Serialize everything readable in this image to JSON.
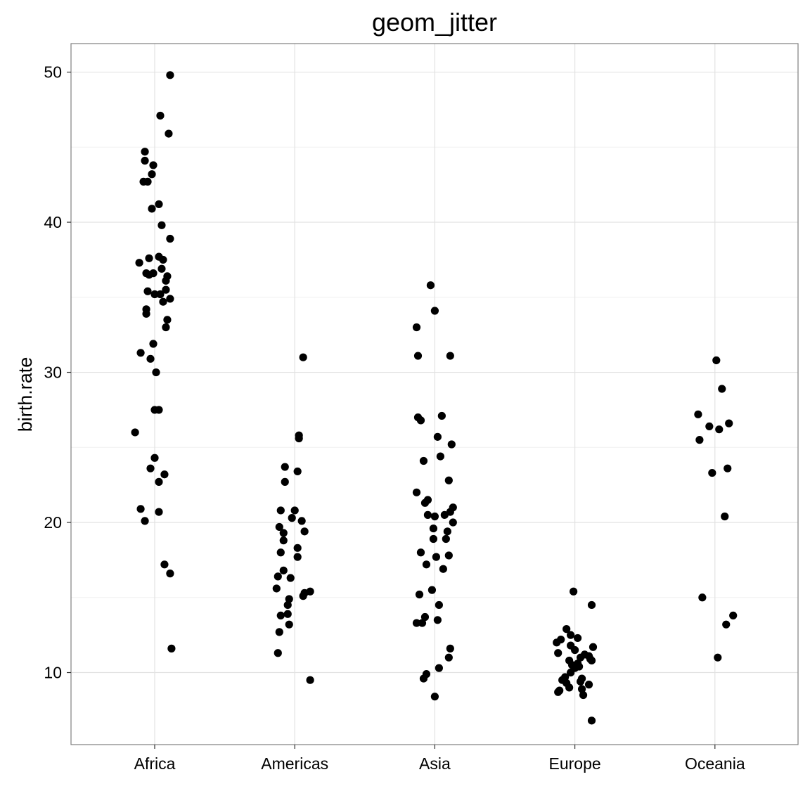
{
  "chart_data": {
    "type": "scatter",
    "title": "geom_jitter",
    "xlabel": "",
    "ylabel": "birth.rate",
    "categories": [
      "Africa",
      "Americas",
      "Asia",
      "Europe",
      "Oceania"
    ],
    "y_ticks": [
      10,
      20,
      30,
      40,
      50
    ],
    "ylim": [
      5.2,
      51.9
    ],
    "grid": true,
    "colors": {
      "point": "#000000",
      "grid_major": "#e2e2e2",
      "grid_minor": "#f0f0f0",
      "panel_border": "#7f7f7f"
    },
    "points": [
      {
        "x": "Africa",
        "jitter": 0.11,
        "y": 49.8
      },
      {
        "x": "Africa",
        "jitter": 0.04,
        "y": 47.1
      },
      {
        "x": "Africa",
        "jitter": 0.1,
        "y": 45.9
      },
      {
        "x": "Africa",
        "jitter": -0.07,
        "y": 44.7
      },
      {
        "x": "Africa",
        "jitter": -0.07,
        "y": 44.1
      },
      {
        "x": "Africa",
        "jitter": -0.01,
        "y": 43.8
      },
      {
        "x": "Africa",
        "jitter": -0.02,
        "y": 43.2
      },
      {
        "x": "Africa",
        "jitter": -0.08,
        "y": 42.7
      },
      {
        "x": "Africa",
        "jitter": -0.05,
        "y": 42.7
      },
      {
        "x": "Africa",
        "jitter": 0.03,
        "y": 41.2
      },
      {
        "x": "Africa",
        "jitter": -0.02,
        "y": 40.9
      },
      {
        "x": "Africa",
        "jitter": 0.05,
        "y": 39.8
      },
      {
        "x": "Africa",
        "jitter": 0.11,
        "y": 38.9
      },
      {
        "x": "Africa",
        "jitter": 0.03,
        "y": 37.7
      },
      {
        "x": "Africa",
        "jitter": -0.04,
        "y": 37.6
      },
      {
        "x": "Africa",
        "jitter": 0.06,
        "y": 37.5
      },
      {
        "x": "Africa",
        "jitter": -0.11,
        "y": 37.3
      },
      {
        "x": "Africa",
        "jitter": 0.05,
        "y": 36.9
      },
      {
        "x": "Africa",
        "jitter": -0.06,
        "y": 36.6
      },
      {
        "x": "Africa",
        "jitter": -0.01,
        "y": 36.6
      },
      {
        "x": "Africa",
        "jitter": -0.04,
        "y": 36.5
      },
      {
        "x": "Africa",
        "jitter": 0.09,
        "y": 36.4
      },
      {
        "x": "Africa",
        "jitter": 0.08,
        "y": 36.1
      },
      {
        "x": "Africa",
        "jitter": 0.08,
        "y": 35.5
      },
      {
        "x": "Africa",
        "jitter": -0.05,
        "y": 35.4
      },
      {
        "x": "Africa",
        "jitter": 0.0,
        "y": 35.2
      },
      {
        "x": "Africa",
        "jitter": 0.04,
        "y": 35.2
      },
      {
        "x": "Africa",
        "jitter": 0.11,
        "y": 34.9
      },
      {
        "x": "Africa",
        "jitter": 0.06,
        "y": 34.7
      },
      {
        "x": "Africa",
        "jitter": -0.06,
        "y": 34.2
      },
      {
        "x": "Africa",
        "jitter": -0.06,
        "y": 33.9
      },
      {
        "x": "Africa",
        "jitter": 0.09,
        "y": 33.5
      },
      {
        "x": "Africa",
        "jitter": 0.08,
        "y": 33.0
      },
      {
        "x": "Africa",
        "jitter": -0.01,
        "y": 31.9
      },
      {
        "x": "Africa",
        "jitter": -0.1,
        "y": 31.3
      },
      {
        "x": "Africa",
        "jitter": -0.03,
        "y": 30.9
      },
      {
        "x": "Africa",
        "jitter": 0.01,
        "y": 30.0
      },
      {
        "x": "Africa",
        "jitter": 0.0,
        "y": 27.5
      },
      {
        "x": "Africa",
        "jitter": 0.03,
        "y": 27.5
      },
      {
        "x": "Africa",
        "jitter": -0.14,
        "y": 26.0
      },
      {
        "x": "Africa",
        "jitter": 0.0,
        "y": 24.3
      },
      {
        "x": "Africa",
        "jitter": -0.03,
        "y": 23.6
      },
      {
        "x": "Africa",
        "jitter": 0.07,
        "y": 23.2
      },
      {
        "x": "Africa",
        "jitter": 0.03,
        "y": 22.7
      },
      {
        "x": "Africa",
        "jitter": -0.1,
        "y": 20.9
      },
      {
        "x": "Africa",
        "jitter": 0.03,
        "y": 20.7
      },
      {
        "x": "Africa",
        "jitter": -0.07,
        "y": 20.1
      },
      {
        "x": "Africa",
        "jitter": 0.07,
        "y": 17.2
      },
      {
        "x": "Africa",
        "jitter": 0.11,
        "y": 16.6
      },
      {
        "x": "Africa",
        "jitter": 0.12,
        "y": 11.6
      },
      {
        "x": "Americas",
        "jitter": 0.06,
        "y": 31.0
      },
      {
        "x": "Americas",
        "jitter": 0.03,
        "y": 25.8
      },
      {
        "x": "Americas",
        "jitter": 0.03,
        "y": 25.6
      },
      {
        "x": "Americas",
        "jitter": -0.07,
        "y": 23.7
      },
      {
        "x": "Americas",
        "jitter": 0.02,
        "y": 23.4
      },
      {
        "x": "Americas",
        "jitter": -0.07,
        "y": 22.7
      },
      {
        "x": "Americas",
        "jitter": -0.1,
        "y": 20.8
      },
      {
        "x": "Americas",
        "jitter": 0.0,
        "y": 20.8
      },
      {
        "x": "Americas",
        "jitter": -0.02,
        "y": 20.3
      },
      {
        "x": "Americas",
        "jitter": 0.05,
        "y": 20.1
      },
      {
        "x": "Americas",
        "jitter": -0.11,
        "y": 19.7
      },
      {
        "x": "Americas",
        "jitter": 0.07,
        "y": 19.4
      },
      {
        "x": "Americas",
        "jitter": -0.08,
        "y": 19.3
      },
      {
        "x": "Americas",
        "jitter": -0.08,
        "y": 18.8
      },
      {
        "x": "Americas",
        "jitter": 0.02,
        "y": 18.3
      },
      {
        "x": "Americas",
        "jitter": -0.1,
        "y": 18.0
      },
      {
        "x": "Americas",
        "jitter": 0.02,
        "y": 17.7
      },
      {
        "x": "Americas",
        "jitter": -0.08,
        "y": 16.8
      },
      {
        "x": "Americas",
        "jitter": -0.12,
        "y": 16.4
      },
      {
        "x": "Americas",
        "jitter": -0.03,
        "y": 16.3
      },
      {
        "x": "Americas",
        "jitter": -0.13,
        "y": 15.6
      },
      {
        "x": "Americas",
        "jitter": 0.11,
        "y": 15.4
      },
      {
        "x": "Americas",
        "jitter": 0.07,
        "y": 15.3
      },
      {
        "x": "Americas",
        "jitter": 0.06,
        "y": 15.1
      },
      {
        "x": "Americas",
        "jitter": -0.04,
        "y": 14.9
      },
      {
        "x": "Americas",
        "jitter": -0.05,
        "y": 14.5
      },
      {
        "x": "Americas",
        "jitter": -0.05,
        "y": 13.9
      },
      {
        "x": "Americas",
        "jitter": -0.1,
        "y": 13.8
      },
      {
        "x": "Americas",
        "jitter": -0.04,
        "y": 13.2
      },
      {
        "x": "Americas",
        "jitter": -0.11,
        "y": 12.7
      },
      {
        "x": "Americas",
        "jitter": -0.12,
        "y": 11.3
      },
      {
        "x": "Americas",
        "jitter": 0.11,
        "y": 9.5
      },
      {
        "x": "Asia",
        "jitter": -0.03,
        "y": 35.8
      },
      {
        "x": "Asia",
        "jitter": 0.0,
        "y": 34.1
      },
      {
        "x": "Asia",
        "jitter": -0.13,
        "y": 33.0
      },
      {
        "x": "Asia",
        "jitter": -0.12,
        "y": 31.1
      },
      {
        "x": "Asia",
        "jitter": 0.11,
        "y": 31.1
      },
      {
        "x": "Asia",
        "jitter": 0.05,
        "y": 27.1
      },
      {
        "x": "Asia",
        "jitter": -0.12,
        "y": 27.0
      },
      {
        "x": "Asia",
        "jitter": -0.1,
        "y": 26.8
      },
      {
        "x": "Asia",
        "jitter": 0.02,
        "y": 25.7
      },
      {
        "x": "Asia",
        "jitter": 0.12,
        "y": 25.2
      },
      {
        "x": "Asia",
        "jitter": 0.04,
        "y": 24.4
      },
      {
        "x": "Asia",
        "jitter": -0.08,
        "y": 24.1
      },
      {
        "x": "Asia",
        "jitter": 0.1,
        "y": 22.8
      },
      {
        "x": "Asia",
        "jitter": -0.13,
        "y": 22.0
      },
      {
        "x": "Asia",
        "jitter": -0.05,
        "y": 21.5
      },
      {
        "x": "Asia",
        "jitter": -0.07,
        "y": 21.3
      },
      {
        "x": "Asia",
        "jitter": 0.13,
        "y": 21.0
      },
      {
        "x": "Asia",
        "jitter": 0.11,
        "y": 20.7
      },
      {
        "x": "Asia",
        "jitter": -0.05,
        "y": 20.5
      },
      {
        "x": "Asia",
        "jitter": 0.0,
        "y": 20.4
      },
      {
        "x": "Asia",
        "jitter": 0.07,
        "y": 20.5
      },
      {
        "x": "Asia",
        "jitter": 0.13,
        "y": 20.0
      },
      {
        "x": "Asia",
        "jitter": -0.01,
        "y": 19.6
      },
      {
        "x": "Asia",
        "jitter": 0.09,
        "y": 19.4
      },
      {
        "x": "Asia",
        "jitter": -0.01,
        "y": 18.9
      },
      {
        "x": "Asia",
        "jitter": 0.08,
        "y": 18.9
      },
      {
        "x": "Asia",
        "jitter": -0.1,
        "y": 18.0
      },
      {
        "x": "Asia",
        "jitter": 0.01,
        "y": 17.7
      },
      {
        "x": "Asia",
        "jitter": 0.1,
        "y": 17.8
      },
      {
        "x": "Asia",
        "jitter": -0.06,
        "y": 17.2
      },
      {
        "x": "Asia",
        "jitter": 0.06,
        "y": 16.9
      },
      {
        "x": "Asia",
        "jitter": -0.02,
        "y": 15.5
      },
      {
        "x": "Asia",
        "jitter": -0.11,
        "y": 15.2
      },
      {
        "x": "Asia",
        "jitter": 0.03,
        "y": 14.5
      },
      {
        "x": "Asia",
        "jitter": -0.07,
        "y": 13.7
      },
      {
        "x": "Asia",
        "jitter": 0.02,
        "y": 13.5
      },
      {
        "x": "Asia",
        "jitter": -0.13,
        "y": 13.3
      },
      {
        "x": "Asia",
        "jitter": -0.09,
        "y": 13.3
      },
      {
        "x": "Asia",
        "jitter": 0.11,
        "y": 11.6
      },
      {
        "x": "Asia",
        "jitter": 0.1,
        "y": 11.0
      },
      {
        "x": "Asia",
        "jitter": 0.03,
        "y": 10.3
      },
      {
        "x": "Asia",
        "jitter": -0.06,
        "y": 9.9
      },
      {
        "x": "Asia",
        "jitter": -0.08,
        "y": 9.6
      },
      {
        "x": "Asia",
        "jitter": 0.0,
        "y": 8.4
      },
      {
        "x": "Europe",
        "jitter": -0.01,
        "y": 15.4
      },
      {
        "x": "Europe",
        "jitter": 0.12,
        "y": 14.5
      },
      {
        "x": "Europe",
        "jitter": -0.06,
        "y": 12.9
      },
      {
        "x": "Europe",
        "jitter": -0.03,
        "y": 12.5
      },
      {
        "x": "Europe",
        "jitter": 0.02,
        "y": 12.3
      },
      {
        "x": "Europe",
        "jitter": -0.1,
        "y": 12.2
      },
      {
        "x": "Europe",
        "jitter": -0.13,
        "y": 12.0
      },
      {
        "x": "Europe",
        "jitter": -0.03,
        "y": 11.8
      },
      {
        "x": "Europe",
        "jitter": 0.13,
        "y": 11.7
      },
      {
        "x": "Europe",
        "jitter": 0.0,
        "y": 11.5
      },
      {
        "x": "Europe",
        "jitter": -0.12,
        "y": 11.3
      },
      {
        "x": "Europe",
        "jitter": 0.07,
        "y": 11.2
      },
      {
        "x": "Europe",
        "jitter": 0.1,
        "y": 11.1
      },
      {
        "x": "Europe",
        "jitter": 0.04,
        "y": 11.0
      },
      {
        "x": "Europe",
        "jitter": 0.11,
        "y": 10.9
      },
      {
        "x": "Europe",
        "jitter": -0.04,
        "y": 10.8
      },
      {
        "x": "Europe",
        "jitter": 0.12,
        "y": 10.8
      },
      {
        "x": "Europe",
        "jitter": 0.02,
        "y": 10.6
      },
      {
        "x": "Europe",
        "jitter": -0.02,
        "y": 10.5
      },
      {
        "x": "Europe",
        "jitter": 0.03,
        "y": 10.4
      },
      {
        "x": "Europe",
        "jitter": 0.0,
        "y": 10.3
      },
      {
        "x": "Europe",
        "jitter": -0.03,
        "y": 10.0
      },
      {
        "x": "Europe",
        "jitter": -0.07,
        "y": 9.7
      },
      {
        "x": "Europe",
        "jitter": 0.05,
        "y": 9.6
      },
      {
        "x": "Europe",
        "jitter": -0.09,
        "y": 9.5
      },
      {
        "x": "Europe",
        "jitter": 0.04,
        "y": 9.4
      },
      {
        "x": "Europe",
        "jitter": -0.06,
        "y": 9.3
      },
      {
        "x": "Europe",
        "jitter": 0.1,
        "y": 9.2
      },
      {
        "x": "Europe",
        "jitter": -0.04,
        "y": 9.0
      },
      {
        "x": "Europe",
        "jitter": 0.05,
        "y": 8.9
      },
      {
        "x": "Europe",
        "jitter": -0.11,
        "y": 8.8
      },
      {
        "x": "Europe",
        "jitter": -0.12,
        "y": 8.7
      },
      {
        "x": "Europe",
        "jitter": 0.06,
        "y": 8.5
      },
      {
        "x": "Europe",
        "jitter": 0.12,
        "y": 6.8
      },
      {
        "x": "Oceania",
        "jitter": 0.01,
        "y": 30.8
      },
      {
        "x": "Oceania",
        "jitter": 0.05,
        "y": 28.9
      },
      {
        "x": "Oceania",
        "jitter": -0.12,
        "y": 27.2
      },
      {
        "x": "Oceania",
        "jitter": 0.1,
        "y": 26.6
      },
      {
        "x": "Oceania",
        "jitter": -0.04,
        "y": 26.4
      },
      {
        "x": "Oceania",
        "jitter": 0.03,
        "y": 26.2
      },
      {
        "x": "Oceania",
        "jitter": -0.11,
        "y": 25.5
      },
      {
        "x": "Oceania",
        "jitter": 0.09,
        "y": 23.6
      },
      {
        "x": "Oceania",
        "jitter": -0.02,
        "y": 23.3
      },
      {
        "x": "Oceania",
        "jitter": 0.07,
        "y": 20.4
      },
      {
        "x": "Oceania",
        "jitter": -0.09,
        "y": 15.0
      },
      {
        "x": "Oceania",
        "jitter": 0.13,
        "y": 13.8
      },
      {
        "x": "Oceania",
        "jitter": 0.08,
        "y": 13.2
      },
      {
        "x": "Oceania",
        "jitter": 0.02,
        "y": 11.0
      }
    ]
  }
}
